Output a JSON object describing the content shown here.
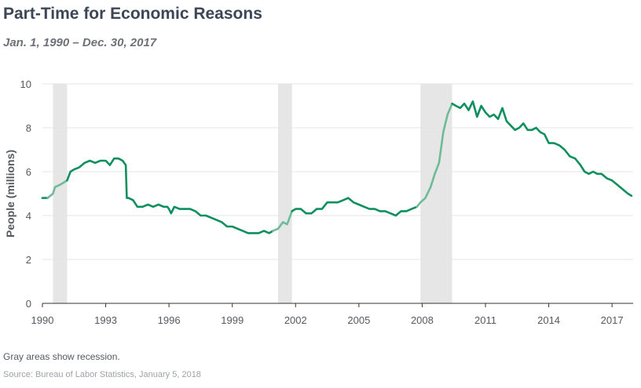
{
  "header": {
    "title": "Part-Time for Economic Reasons",
    "subtitle": "Jan. 1, 1990 – Dec. 30, 2017"
  },
  "footer": {
    "note": "Gray areas show recession.",
    "source": "Source: Bureau of Labor Statistics, January 5, 2018"
  },
  "colors": {
    "line": "#0e8f5e",
    "line_recession": "#6dbb98",
    "recession_band": "#e6e6e6",
    "grid": "#e4e4e4",
    "axis": "#333333"
  },
  "chart_data": {
    "type": "line",
    "title": "Part-Time for Economic Reasons",
    "subtitle": "Jan. 1, 1990 – Dec. 30, 2017",
    "xlabel": "",
    "ylabel": "People (millions)",
    "xlim": [
      1990,
      2018
    ],
    "ylim": [
      0,
      10
    ],
    "x_ticks": [
      1990,
      1993,
      1996,
      1999,
      2002,
      2005,
      2008,
      2011,
      2014,
      2017
    ],
    "x_tick_labels": [
      "1990",
      "1993",
      "1996",
      "1999",
      "2002",
      "2005",
      "2008",
      "2011",
      "2014",
      "2017"
    ],
    "y_ticks": [
      0,
      2,
      4,
      6,
      8,
      10
    ],
    "y_tick_labels": [
      "0",
      "2",
      "4",
      "6",
      "8",
      "10"
    ],
    "grid": true,
    "recessions": [
      [
        1990.5,
        1991.17
      ],
      [
        2001.17,
        2001.83
      ],
      [
        2007.92,
        2009.42
      ]
    ],
    "series": [
      {
        "x": [
          1990.0,
          1990.25,
          1990.5,
          1990.6,
          1990.83,
          1991.0,
          1991.17,
          1991.33,
          1991.5,
          1991.75,
          1992.0,
          1992.25,
          1992.5,
          1992.75,
          1993.0,
          1993.2,
          1993.4,
          1993.6,
          1993.8,
          1993.95,
          1994.0,
          1994.08,
          1994.3,
          1994.5,
          1994.75,
          1995.0,
          1995.25,
          1995.5,
          1995.75,
          1995.92,
          1996.0,
          1996.1,
          1996.25,
          1996.5,
          1996.75,
          1997.0,
          1997.25,
          1997.5,
          1997.75,
          1998.0,
          1998.25,
          1998.5,
          1998.75,
          1999.0,
          1999.25,
          1999.5,
          1999.75,
          2000.0,
          2000.25,
          2000.5,
          2000.75,
          2000.92,
          2001.17,
          2001.4,
          2001.6,
          2001.83,
          2002.0,
          2002.25,
          2002.5,
          2002.75,
          2003.0,
          2003.25,
          2003.5,
          2003.75,
          2004.0,
          2004.25,
          2004.5,
          2004.75,
          2005.0,
          2005.25,
          2005.5,
          2005.75,
          2006.0,
          2006.25,
          2006.5,
          2006.75,
          2007.0,
          2007.25,
          2007.5,
          2007.75,
          2007.92,
          2008.15,
          2008.4,
          2008.6,
          2008.8,
          2009.0,
          2009.2,
          2009.42,
          2009.6,
          2009.8,
          2010.0,
          2010.2,
          2010.4,
          2010.6,
          2010.8,
          2011.0,
          2011.2,
          2011.4,
          2011.6,
          2011.8,
          2012.0,
          2012.2,
          2012.4,
          2012.6,
          2012.8,
          2013.0,
          2013.2,
          2013.4,
          2013.6,
          2013.8,
          2014.0,
          2014.25,
          2014.5,
          2014.75,
          2015.0,
          2015.25,
          2015.5,
          2015.7,
          2015.9,
          2016.1,
          2016.3,
          2016.5,
          2016.75,
          2017.0,
          2017.25,
          2017.5,
          2017.75,
          2017.92
        ],
        "y": [
          4.8,
          4.8,
          5.0,
          5.3,
          5.4,
          5.5,
          5.6,
          6.0,
          6.1,
          6.2,
          6.4,
          6.5,
          6.4,
          6.5,
          6.5,
          6.3,
          6.6,
          6.6,
          6.5,
          6.3,
          4.8,
          4.8,
          4.7,
          4.4,
          4.4,
          4.5,
          4.4,
          4.5,
          4.4,
          4.4,
          4.3,
          4.1,
          4.4,
          4.3,
          4.3,
          4.3,
          4.2,
          4.0,
          4.0,
          3.9,
          3.8,
          3.7,
          3.5,
          3.5,
          3.4,
          3.3,
          3.2,
          3.2,
          3.2,
          3.3,
          3.2,
          3.3,
          3.4,
          3.7,
          3.6,
          4.2,
          4.3,
          4.3,
          4.1,
          4.1,
          4.3,
          4.3,
          4.6,
          4.6,
          4.6,
          4.7,
          4.8,
          4.6,
          4.5,
          4.4,
          4.3,
          4.3,
          4.2,
          4.2,
          4.1,
          4.0,
          4.2,
          4.2,
          4.3,
          4.4,
          4.6,
          4.8,
          5.3,
          5.9,
          6.4,
          7.8,
          8.6,
          9.1,
          9.0,
          8.9,
          9.1,
          8.8,
          9.2,
          8.5,
          9.0,
          8.7,
          8.5,
          8.6,
          8.4,
          8.9,
          8.3,
          8.1,
          7.9,
          8.0,
          8.2,
          7.9,
          7.9,
          8.0,
          7.8,
          7.7,
          7.3,
          7.3,
          7.2,
          7.0,
          6.7,
          6.6,
          6.3,
          6.0,
          5.9,
          6.0,
          5.9,
          5.9,
          5.7,
          5.6,
          5.4,
          5.2,
          5.0,
          4.9
        ]
      }
    ]
  }
}
